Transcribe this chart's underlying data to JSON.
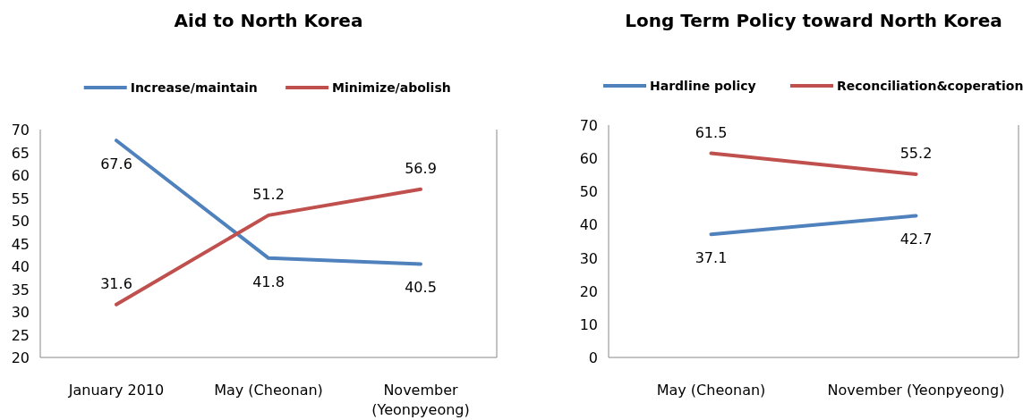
{
  "chart_data": [
    {
      "type": "line",
      "title": "Aid to North Korea",
      "categories": [
        "January 2010",
        "May (Cheonan)",
        "November (Yeonpyeong)"
      ],
      "series": [
        {
          "name": "Increase/maintain",
          "color": "#4f81bd",
          "values": [
            67.6,
            41.8,
            40.5
          ]
        },
        {
          "name": "Minimize/abolish",
          "color": "#c0504d",
          "values": [
            31.6,
            51.2,
            56.9
          ]
        }
      ],
      "ylim": [
        20,
        70
      ],
      "yticks": [
        20,
        25,
        30,
        35,
        40,
        45,
        50,
        55,
        60,
        65,
        70
      ],
      "grid": false,
      "legend": "top",
      "data_labels": true,
      "marker": "none"
    },
    {
      "type": "line",
      "title": "Long Term Policy toward North Korea",
      "categories": [
        "May (Cheonan)",
        "November (Yeonpyeong)"
      ],
      "series": [
        {
          "name": "Hardline policy",
          "color": "#4f81bd",
          "values": [
            37.1,
            42.7
          ]
        },
        {
          "name": "Reconciliation&coperation",
          "color": "#c0504d",
          "values": [
            61.5,
            55.2
          ]
        }
      ],
      "ylim": [
        0,
        70
      ],
      "yticks": [
        0,
        10,
        20,
        30,
        40,
        50,
        60,
        70
      ],
      "grid": false,
      "legend": "top",
      "data_labels": true,
      "marker": "none"
    }
  ]
}
